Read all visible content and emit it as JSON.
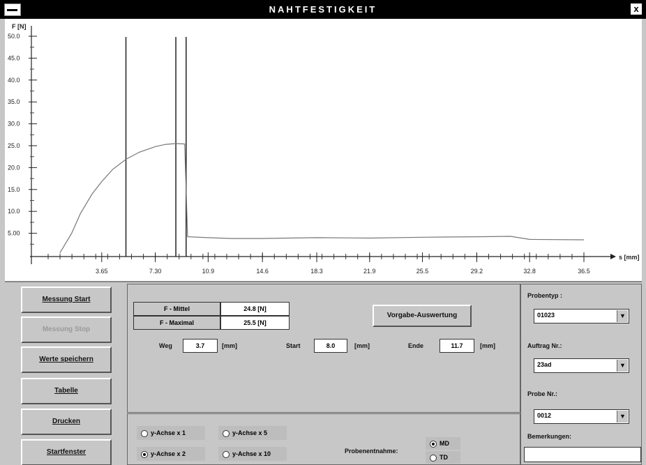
{
  "window": {
    "title": "NAHTFESTIGKEIT",
    "close_glyph": "x"
  },
  "chart_data": {
    "type": "line",
    "xlabel": "s [mm]",
    "ylabel": "F [N]",
    "xlim": [
      0,
      36.5
    ],
    "ylim": [
      0,
      50
    ],
    "x_ticks": [
      "3.65",
      "7.30",
      "10.9",
      "14.6",
      "18.3",
      "21.9",
      "25.5",
      "29.2",
      "32.8",
      "36.5"
    ],
    "y_ticks": [
      "5.00",
      "10.0",
      "15.0",
      "20.0",
      "25.0",
      "30.0",
      "35.0",
      "40.0",
      "45.0",
      "50.0"
    ],
    "vertical_markers": [
      5.3,
      8.7,
      9.4
    ],
    "series": [
      {
        "x": [
          0.8,
          1.6,
          2.2,
          3.0,
          3.65,
          4.4,
          5.3,
          6.2,
          7.3,
          8.0,
          8.7,
          9.3,
          9.5,
          10.9,
          12.5,
          14.6,
          18.3,
          21.9,
          25.5,
          29.2,
          31.5,
          32.8,
          36.5
        ],
        "y": [
          0.5,
          5.0,
          9.5,
          14.0,
          16.8,
          19.6,
          21.9,
          23.5,
          24.8,
          25.3,
          25.5,
          25.4,
          4.2,
          4.0,
          3.8,
          3.8,
          4.0,
          3.9,
          4.1,
          4.2,
          4.3,
          3.6,
          3.5
        ]
      }
    ]
  },
  "buttons": {
    "messung_start": "Messung Start",
    "messung_stop": "Messung Stop",
    "werte_speichern": "Werte speichern",
    "tabelle": "Tabelle",
    "drucken": "Drucken",
    "startfenster": "Startfenster"
  },
  "results": {
    "f_mittel_label": "F - Mittel",
    "f_mittel_value": "24.8 [N]",
    "f_maximal_label": "F - Maximal",
    "f_maximal_value": "25.5 [N]",
    "vorgabe_button": "Vorgabe-Auswertung",
    "weg_label": "Weg",
    "weg_value": "3.7",
    "start_label": "Start",
    "start_value": "8.0",
    "ende_label": "Ende",
    "ende_value": "11.7",
    "unit_mm": "[mm]"
  },
  "scale": {
    "y1": "y-Achse x 1",
    "y2": "y-Achse x 2",
    "y5": "y-Achse x 5",
    "y10": "y-Achse x 10",
    "selected": "y-Achse x 2"
  },
  "sampling": {
    "label": "Probenentnahme:",
    "md": "MD",
    "td": "TD",
    "selected": "MD"
  },
  "side": {
    "probentyp_label": "Probentyp :",
    "probentyp_value": "01023",
    "auftrag_label": "Auftrag Nr.:",
    "auftrag_value": "23ad",
    "probe_label": "Probe Nr.:",
    "probe_value": "0012",
    "bemerkungen_label": "Bemerkungen:",
    "bemerkungen_value": ""
  },
  "icons": {
    "dropdown": "chevron-down-icon",
    "system_menu": "system-menu-icon"
  }
}
